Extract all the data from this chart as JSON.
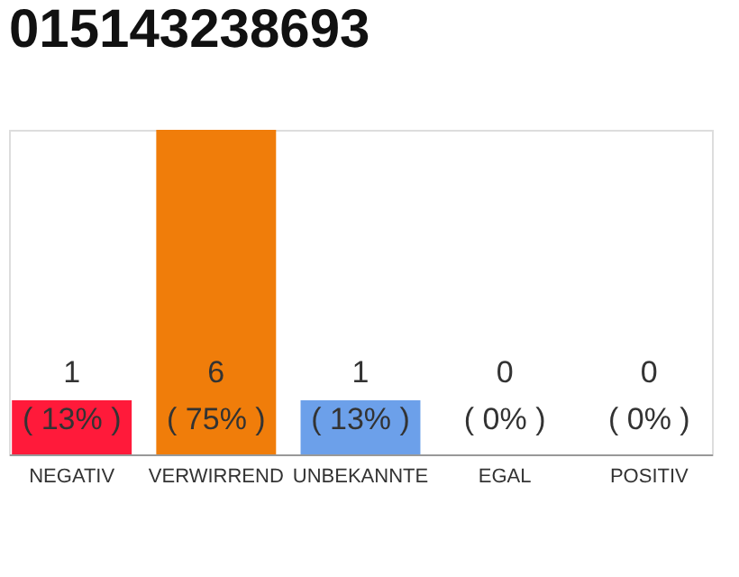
{
  "chart_data": {
    "type": "bar",
    "title": "015143238693",
    "categories": [
      "NEGATIV",
      "VERWIRREND",
      "UNBEKANNTE",
      "EGAL",
      "POSITIV"
    ],
    "values": [
      1,
      6,
      1,
      0,
      0
    ],
    "colors": [
      "#ff1a3a",
      "#f07d0a",
      "#6ca0ea",
      "#e0e0e0",
      "#e0e0e0"
    ],
    "value_labels": [
      "1\n( 13% )",
      "6\n( 75% )",
      "1\n( 13% )",
      "0\n( 0% )",
      "0\n( 0% )"
    ],
    "tick_labels": "x",
    "grid": false,
    "legend": false
  }
}
